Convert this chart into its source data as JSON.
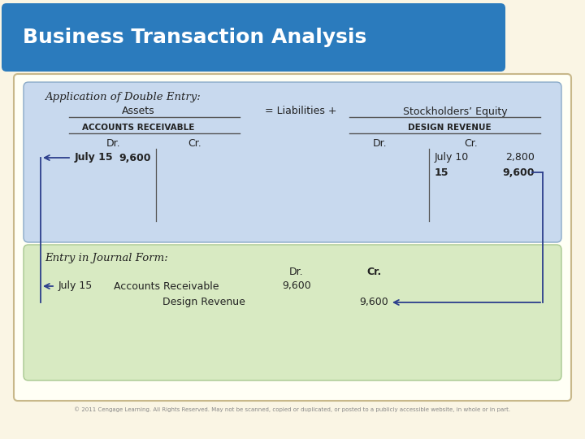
{
  "title": "Business Transaction Analysis",
  "title_bg": "#2B7BBD",
  "title_color": "#FFFFFF",
  "page_bg": "#FAF5E4",
  "top_box_bg": "#C8D9EE",
  "bottom_box_bg": "#D8EAC2",
  "box_border_top": "#8AAAC8",
  "box_border_bot": "#A8C890",
  "double_entry_label": "Application of Double Entry:",
  "journal_label": "Entry in Journal Form:",
  "assets_label": "Assets",
  "eq_label": "= Liabilities +",
  "se_label": "Stockholders’ Equity",
  "ar_label": "Accounts Receivable",
  "dr_rev_label": "Design Revenue",
  "dr_header": "Dr.",
  "cr_header": "Cr.",
  "ar_dr_date": "July 15",
  "ar_dr_val": "9,600",
  "rev_cr_date1": "July 10",
  "rev_cr_val1": "2,800",
  "rev_cr_date2": "15",
  "rev_cr_val2": "9,600",
  "journal_date": "July 15",
  "journal_ar": "Accounts Receivable",
  "journal_dr_name": "Design Revenue",
  "journal_dr_val": "9,600",
  "journal_cr_val": "9,600",
  "arrow_color": "#2C3E8C",
  "text_color": "#222222",
  "line_color": "#555555",
  "footer": "© 2011 Cengage Learning. All Rights Reserved. May not be scanned, copied or duplicated, or posted to a publicly accessible website, in whole or in part."
}
